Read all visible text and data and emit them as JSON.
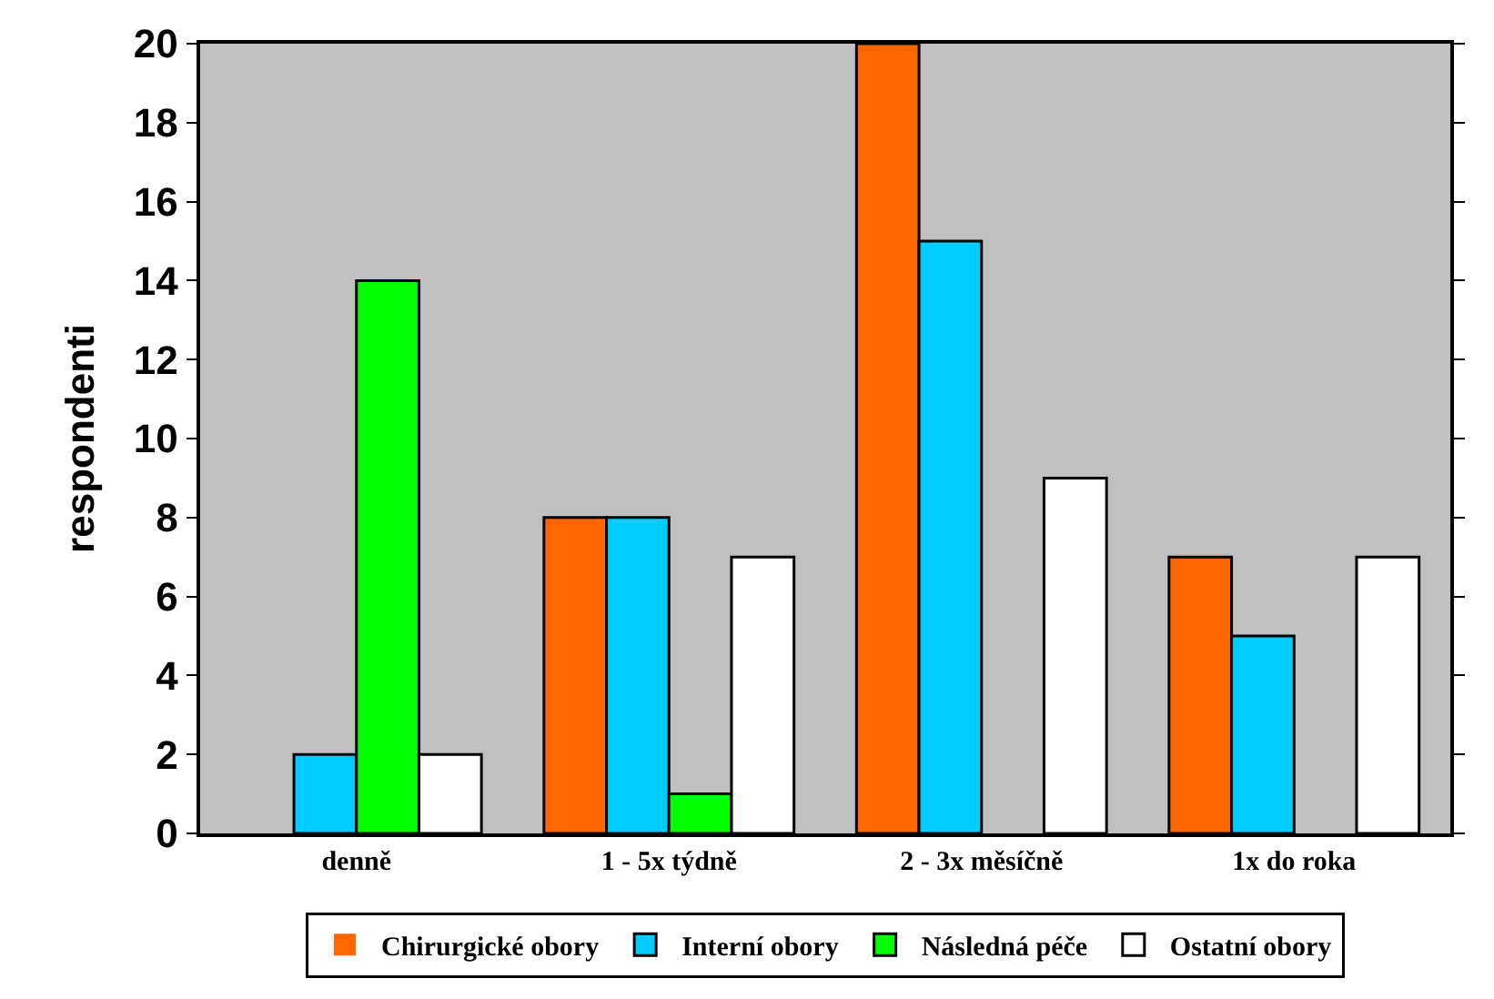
{
  "chart_data": {
    "type": "bar",
    "ylabel": "respondenti",
    "categories": [
      "denně",
      "1 - 5x týdně",
      "2 - 3x měsíčně",
      "1x do roka"
    ],
    "series": [
      {
        "name": "Chirurgické obory",
        "color": "#ff6600",
        "values": [
          0,
          8,
          20,
          7
        ]
      },
      {
        "name": "Interní obory",
        "color": "#00ccff",
        "values": [
          2,
          8,
          15,
          5
        ]
      },
      {
        "name": "Následná péče",
        "color": "#00ff00",
        "values": [
          14,
          1,
          0,
          0
        ]
      },
      {
        "name": "Ostatní obory",
        "color": "#ffffff",
        "values": [
          2,
          7,
          9,
          7
        ]
      }
    ],
    "ylim": [
      0,
      20
    ],
    "yticks": [
      0,
      2,
      4,
      6,
      8,
      10,
      12,
      14,
      16,
      18,
      20
    ],
    "grid": false,
    "legend": "bottom"
  }
}
